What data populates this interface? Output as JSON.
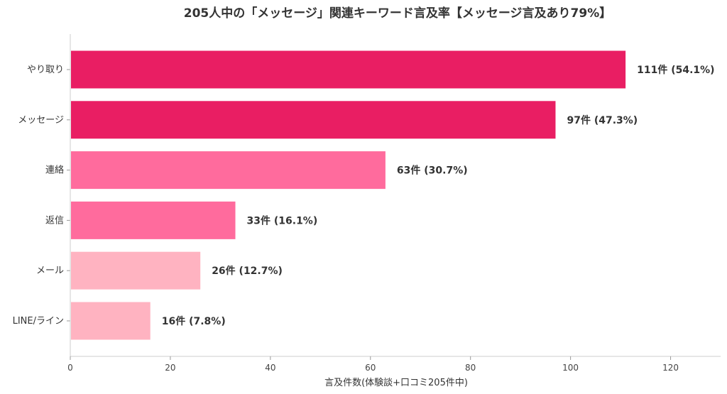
{
  "chart_data": {
    "type": "bar",
    "orientation": "horizontal",
    "title": "205人中の「メッセージ」関連キーワード言及率【メッセージ言及あり79%】",
    "xlabel": "言及件数(体験談+口コミ205件中)",
    "ylabel": "",
    "xlim": [
      0,
      130
    ],
    "xticks": [
      0,
      20,
      40,
      60,
      80,
      100,
      120
    ],
    "grid": false,
    "categories": [
      "やり取り",
      "メッセージ",
      "連絡",
      "返信",
      "メール",
      "LINE/ライン"
    ],
    "values": [
      111,
      97,
      63,
      33,
      26,
      16
    ],
    "data_labels": [
      "111件 (54.1%)",
      "97件 (47.3%)",
      "63件 (30.7%)",
      "33件 (16.1%)",
      "26件 (12.7%)",
      "16件 (7.8%)"
    ],
    "colors": [
      "#e91e63",
      "#e91e63",
      "#ff6b9d",
      "#ff6b9d",
      "#ffb3c1",
      "#ffb3c1"
    ]
  }
}
